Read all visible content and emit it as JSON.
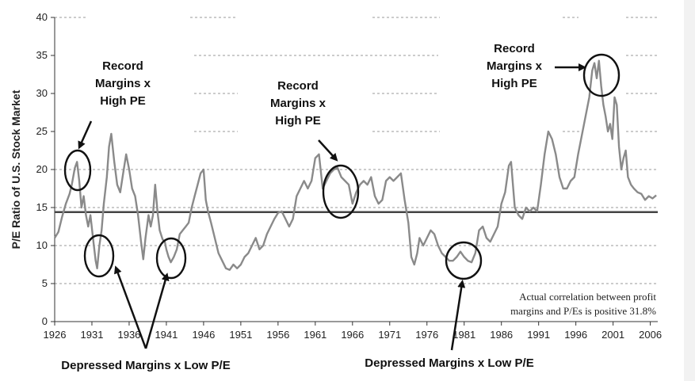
{
  "chart_data": {
    "type": "line",
    "title": "",
    "xlabel": "",
    "ylabel": "P/E Ratio of U.S. Stock Market",
    "xlim": [
      1926,
      2007
    ],
    "ylim": [
      0,
      40
    ],
    "x_ticks": [
      1926,
      1931,
      1936,
      1941,
      1946,
      1951,
      1956,
      1961,
      1966,
      1971,
      1976,
      1981,
      1986,
      1991,
      1996,
      2001,
      2006
    ],
    "x_tick_labels": [
      "1926",
      "1931",
      "1936",
      "1941",
      "1946",
      "1951",
      "1956",
      "1961",
      "1966",
      "1971",
      "1976",
      "1981",
      "1986",
      "1991",
      "1996",
      "2001",
      "2006"
    ],
    "y_ticks": [
      0,
      5,
      10,
      15,
      20,
      25,
      30,
      35,
      40
    ],
    "y_tick_labels": [
      "0",
      "5",
      "10",
      "15",
      "20",
      "25",
      "30",
      "35",
      "40"
    ],
    "average_line": 14.4,
    "series": [
      {
        "name": "P/E Ratio",
        "points": [
          [
            1926.0,
            11.0
          ],
          [
            1926.5,
            11.8
          ],
          [
            1927.0,
            13.8
          ],
          [
            1927.5,
            15.5
          ],
          [
            1928.0,
            16.8
          ],
          [
            1928.3,
            18.0
          ],
          [
            1928.7,
            20.2
          ],
          [
            1929.0,
            21.0
          ],
          [
            1929.3,
            18.5
          ],
          [
            1929.6,
            15.0
          ],
          [
            1929.9,
            16.5
          ],
          [
            1930.2,
            14.0
          ],
          [
            1930.5,
            12.5
          ],
          [
            1930.8,
            14.0
          ],
          [
            1931.2,
            10.5
          ],
          [
            1931.5,
            8.0
          ],
          [
            1931.7,
            7.0
          ],
          [
            1932.0,
            10.0
          ],
          [
            1932.3,
            12.0
          ],
          [
            1932.6,
            15.5
          ],
          [
            1933.0,
            19.0
          ],
          [
            1933.3,
            23.0
          ],
          [
            1933.6,
            24.7
          ],
          [
            1934.0,
            21.0
          ],
          [
            1934.4,
            18.0
          ],
          [
            1934.8,
            17.0
          ],
          [
            1935.2,
            19.5
          ],
          [
            1935.6,
            22.0
          ],
          [
            1936.0,
            20.0
          ],
          [
            1936.4,
            17.5
          ],
          [
            1936.8,
            16.5
          ],
          [
            1937.2,
            14.0
          ],
          [
            1937.6,
            10.5
          ],
          [
            1937.9,
            8.2
          ],
          [
            1938.2,
            11.0
          ],
          [
            1938.6,
            14.0
          ],
          [
            1938.9,
            12.5
          ],
          [
            1939.2,
            14.0
          ],
          [
            1939.5,
            18.0
          ],
          [
            1939.8,
            14.5
          ],
          [
            1940.1,
            12.0
          ],
          [
            1940.5,
            10.8
          ],
          [
            1940.8,
            10.5
          ],
          [
            1941.0,
            9.5
          ],
          [
            1941.3,
            8.5
          ],
          [
            1941.6,
            7.8
          ],
          [
            1942.0,
            8.5
          ],
          [
            1942.4,
            9.5
          ],
          [
            1942.8,
            11.5
          ],
          [
            1943.2,
            12.0
          ],
          [
            1943.6,
            12.5
          ],
          [
            1944.0,
            13.0
          ],
          [
            1944.4,
            15.0
          ],
          [
            1944.8,
            16.5
          ],
          [
            1945.2,
            18.0
          ],
          [
            1945.6,
            19.5
          ],
          [
            1946.0,
            20.0
          ],
          [
            1946.3,
            16.0
          ],
          [
            1946.6,
            14.5
          ],
          [
            1947.0,
            13.0
          ],
          [
            1947.5,
            11.0
          ],
          [
            1948.0,
            9.0
          ],
          [
            1948.5,
            8.0
          ],
          [
            1949.0,
            7.0
          ],
          [
            1949.5,
            6.8
          ],
          [
            1950.0,
            7.5
          ],
          [
            1950.5,
            7.0
          ],
          [
            1951.0,
            7.5
          ],
          [
            1951.5,
            8.5
          ],
          [
            1952.0,
            9.0
          ],
          [
            1952.5,
            10.0
          ],
          [
            1953.0,
            11.0
          ],
          [
            1953.5,
            9.5
          ],
          [
            1954.0,
            10.0
          ],
          [
            1954.5,
            11.5
          ],
          [
            1955.0,
            12.5
          ],
          [
            1955.5,
            13.5
          ],
          [
            1956.0,
            14.3
          ],
          [
            1956.5,
            14.5
          ],
          [
            1957.0,
            13.5
          ],
          [
            1957.5,
            12.5
          ],
          [
            1958.0,
            13.5
          ],
          [
            1958.5,
            16.5
          ],
          [
            1959.0,
            17.5
          ],
          [
            1959.5,
            18.5
          ],
          [
            1960.0,
            17.5
          ],
          [
            1960.5,
            18.5
          ],
          [
            1961.0,
            21.5
          ],
          [
            1961.5,
            22.0
          ],
          [
            1962.0,
            17.5
          ],
          [
            1962.5,
            18.5
          ],
          [
            1963.0,
            19.5
          ],
          [
            1963.5,
            20.0
          ],
          [
            1964.0,
            20.2
          ],
          [
            1964.5,
            19.0
          ],
          [
            1965.0,
            18.5
          ],
          [
            1965.5,
            18.0
          ],
          [
            1966.0,
            15.5
          ],
          [
            1966.5,
            17.0
          ],
          [
            1967.0,
            18.0
          ],
          [
            1967.5,
            18.5
          ],
          [
            1968.0,
            18.0
          ],
          [
            1968.5,
            19.0
          ],
          [
            1969.0,
            16.5
          ],
          [
            1969.5,
            15.5
          ],
          [
            1970.0,
            16.0
          ],
          [
            1970.5,
            18.5
          ],
          [
            1971.0,
            19.0
          ],
          [
            1971.5,
            18.5
          ],
          [
            1972.0,
            19.0
          ],
          [
            1972.5,
            19.5
          ],
          [
            1973.0,
            16.0
          ],
          [
            1973.5,
            13.0
          ],
          [
            1973.9,
            8.5
          ],
          [
            1974.3,
            7.5
          ],
          [
            1974.7,
            9.0
          ],
          [
            1975.0,
            11.0
          ],
          [
            1975.5,
            10.0
          ],
          [
            1976.0,
            11.0
          ],
          [
            1976.5,
            12.0
          ],
          [
            1977.0,
            11.5
          ],
          [
            1977.5,
            10.0
          ],
          [
            1978.0,
            9.0
          ],
          [
            1978.5,
            8.5
          ],
          [
            1979.0,
            8.0
          ],
          [
            1979.5,
            8.0
          ],
          [
            1980.0,
            8.5
          ],
          [
            1980.5,
            9.2
          ],
          [
            1981.0,
            8.5
          ],
          [
            1981.5,
            8.0
          ],
          [
            1982.0,
            7.8
          ],
          [
            1982.5,
            9.0
          ],
          [
            1983.0,
            12.0
          ],
          [
            1983.5,
            12.5
          ],
          [
            1984.0,
            11.0
          ],
          [
            1984.5,
            10.5
          ],
          [
            1985.0,
            11.5
          ],
          [
            1985.5,
            12.5
          ],
          [
            1986.0,
            15.5
          ],
          [
            1986.5,
            17.0
          ],
          [
            1987.0,
            20.5
          ],
          [
            1987.3,
            21.0
          ],
          [
            1987.8,
            15.0
          ],
          [
            1988.3,
            14.0
          ],
          [
            1988.8,
            13.5
          ],
          [
            1989.3,
            15.0
          ],
          [
            1989.8,
            14.5
          ],
          [
            1990.3,
            15.0
          ],
          [
            1990.8,
            14.5
          ],
          [
            1991.3,
            18.0
          ],
          [
            1991.8,
            22.0
          ],
          [
            1992.3,
            25.0
          ],
          [
            1992.8,
            24.0
          ],
          [
            1993.3,
            22.0
          ],
          [
            1993.8,
            19.0
          ],
          [
            1994.3,
            17.5
          ],
          [
            1994.8,
            17.5
          ],
          [
            1995.3,
            18.5
          ],
          [
            1995.8,
            19.0
          ],
          [
            1996.3,
            22.0
          ],
          [
            1996.8,
            24.5
          ],
          [
            1997.3,
            27.0
          ],
          [
            1997.8,
            29.5
          ],
          [
            1998.2,
            33.0
          ],
          [
            1998.5,
            34.0
          ],
          [
            1998.8,
            32.0
          ],
          [
            1999.1,
            34.3
          ],
          [
            1999.4,
            31.0
          ],
          [
            1999.7,
            28.5
          ],
          [
            2000.0,
            27.0
          ],
          [
            2000.3,
            25.0
          ],
          [
            2000.6,
            26.0
          ],
          [
            2000.9,
            24.0
          ],
          [
            2001.2,
            29.5
          ],
          [
            2001.5,
            28.5
          ],
          [
            2001.8,
            23.0
          ],
          [
            2002.1,
            20.0
          ],
          [
            2002.4,
            21.5
          ],
          [
            2002.7,
            22.5
          ],
          [
            2003.0,
            19.0
          ],
          [
            2003.4,
            18.0
          ],
          [
            2003.8,
            17.5
          ],
          [
            2004.3,
            17.0
          ],
          [
            2004.8,
            16.8
          ],
          [
            2005.3,
            16.0
          ],
          [
            2005.8,
            16.5
          ],
          [
            2006.3,
            16.2
          ],
          [
            2006.8,
            16.6
          ]
        ]
      }
    ],
    "annotations": [
      {
        "lines": [
          "Record",
          "Margins x",
          "High PE"
        ],
        "target_year": 1929
      },
      {
        "lines": [
          "Record",
          "Margins x",
          "High PE"
        ],
        "target_year": 1964
      },
      {
        "lines": [
          "Record",
          "Margins x",
          "High PE"
        ],
        "target_year": 1999
      },
      {
        "lines": [
          "Depressed Margins x Low P/E"
        ],
        "target_years": [
          1932,
          1942
        ]
      },
      {
        "lines": [
          "Depressed Margins x Low P/E"
        ],
        "target_years": [
          1981
        ]
      }
    ],
    "note": [
      "Actual correlation between profit",
      "margins and P/Es is positive 31.8%"
    ]
  }
}
